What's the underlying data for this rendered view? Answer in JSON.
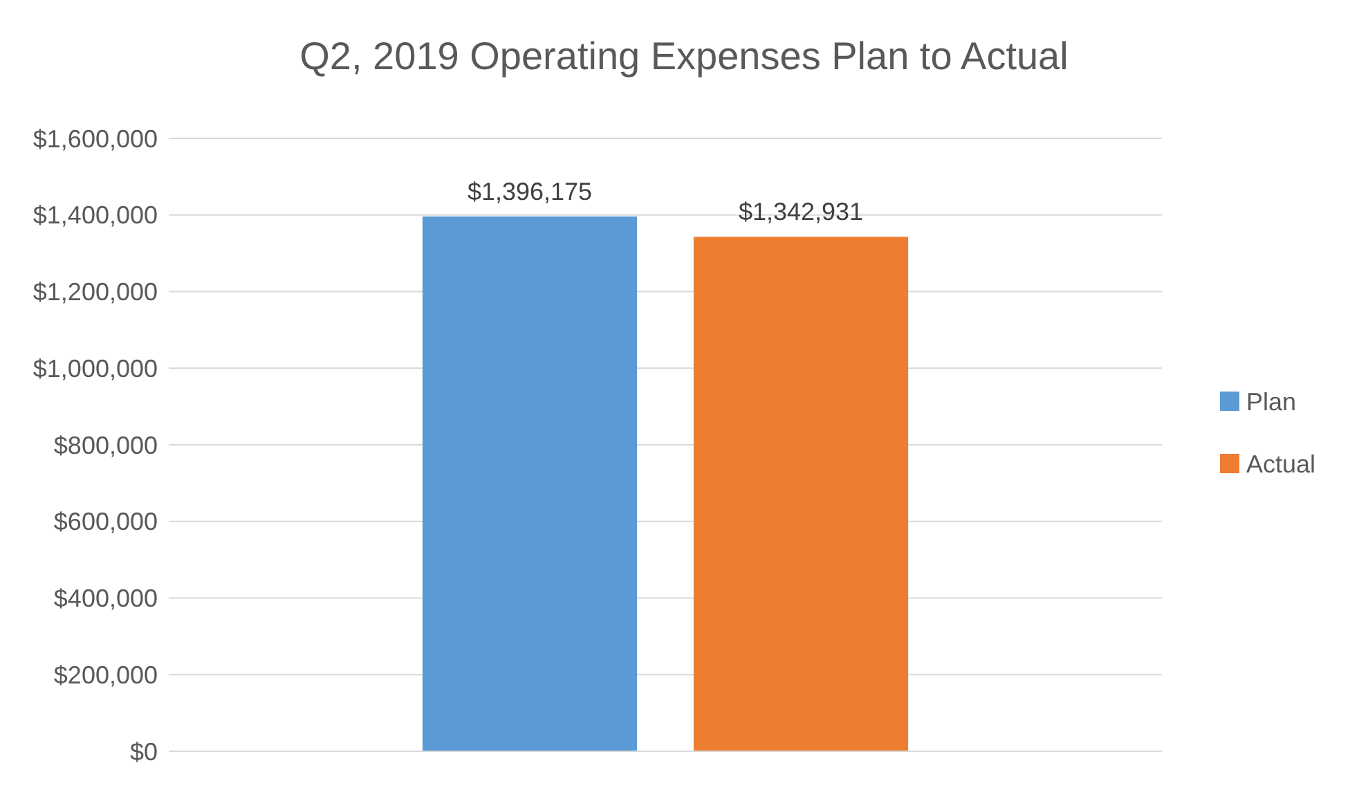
{
  "chart_data": {
    "type": "bar",
    "title": "Q2, 2019 Operating Expenses Plan to Actual",
    "categories": [
      null
    ],
    "series": [
      {
        "name": "Plan",
        "color": "#5b9bd5",
        "values": [
          1396175
        ],
        "value_labels": [
          "$1,396,175"
        ]
      },
      {
        "name": "Actual",
        "color": "#ed7d31",
        "values": [
          1342931
        ],
        "value_labels": [
          "$1,342,931"
        ]
      }
    ],
    "ylim": [
      0,
      1600000
    ],
    "yticks": [
      {
        "value": 0,
        "label": "$0"
      },
      {
        "value": 200000,
        "label": "$200,000"
      },
      {
        "value": 400000,
        "label": "$400,000"
      },
      {
        "value": 600000,
        "label": "$600,000"
      },
      {
        "value": 800000,
        "label": "$800,000"
      },
      {
        "value": 1000000,
        "label": "$1,000,000"
      },
      {
        "value": 1200000,
        "label": "$1,200,000"
      },
      {
        "value": 1400000,
        "label": "$1,400,000"
      },
      {
        "value": 1600000,
        "label": "$1,600,000"
      }
    ],
    "grid": "y",
    "legend": "right"
  }
}
